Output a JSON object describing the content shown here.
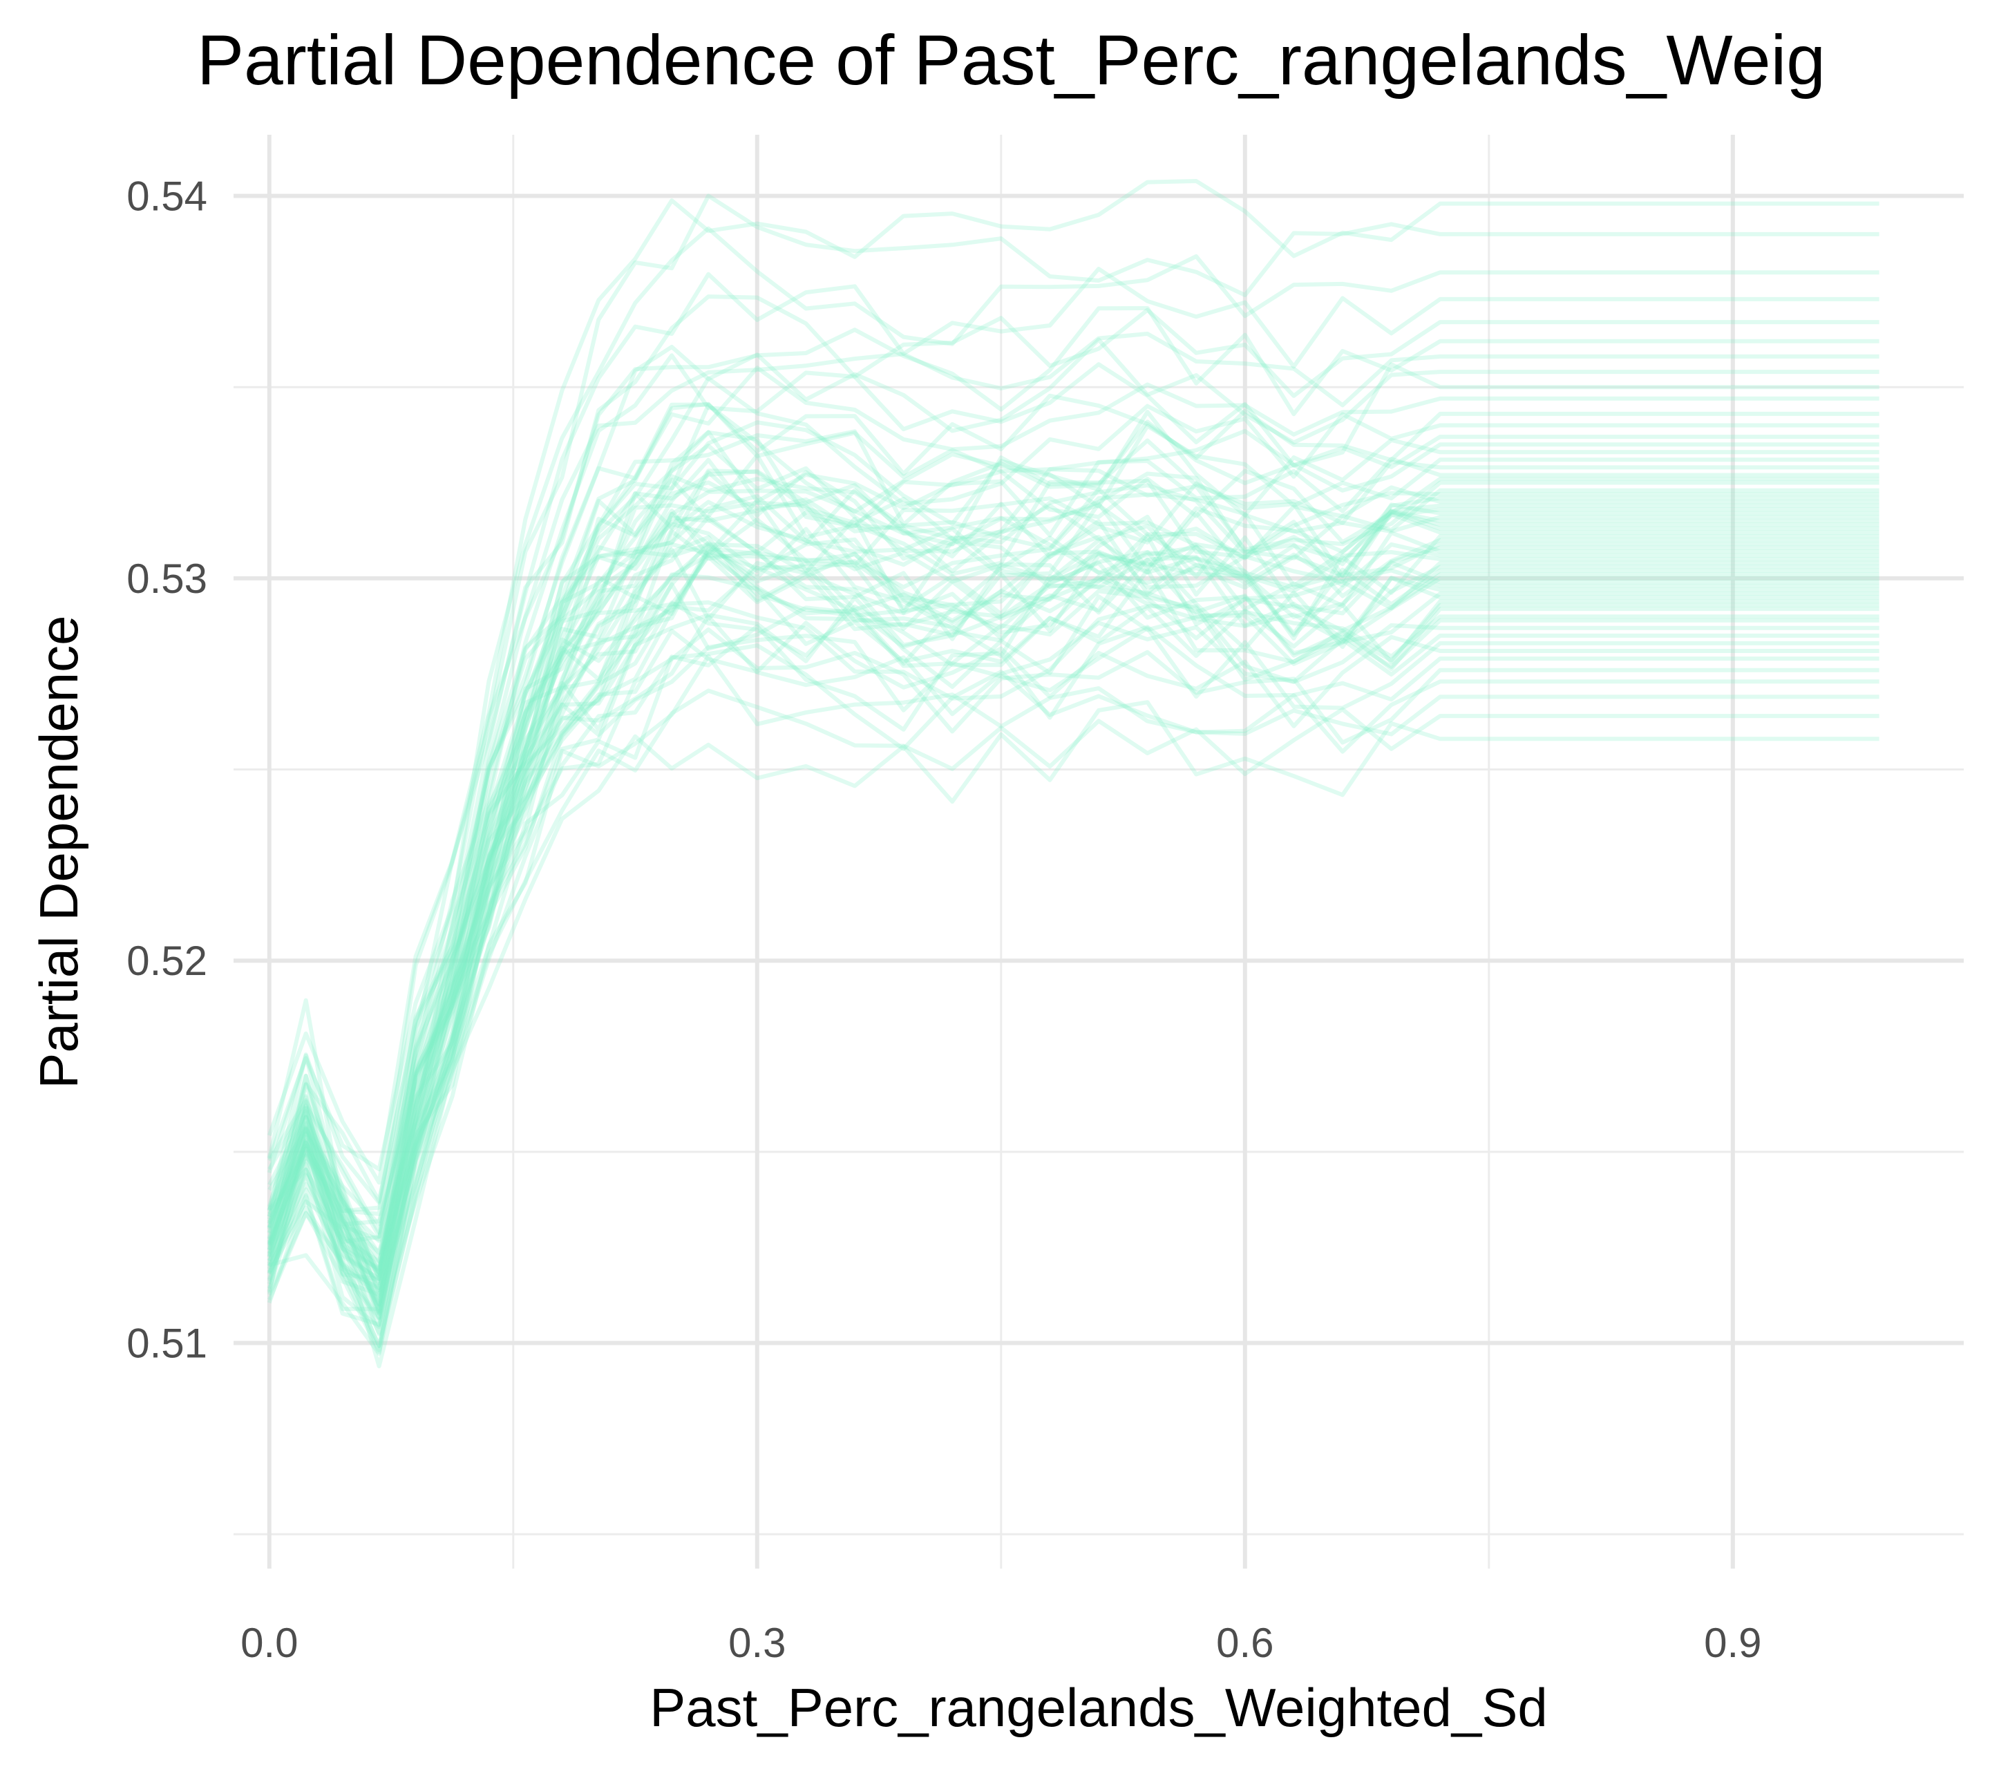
{
  "chart_data": {
    "type": "line",
    "title": "Partial Dependence of Past_Perc_rangelands_Weig",
    "xlabel": "Past_Perc_rangelands_Weighted_Sd",
    "ylabel": "Partial Dependence",
    "xlim": [
      -0.022,
      1.042
    ],
    "ylim": [
      0.5041,
      0.5416
    ],
    "x_ticks": [
      0.0,
      0.3,
      0.6,
      0.9
    ],
    "x_tick_labels": [
      "0.0",
      "0.3",
      "0.6",
      "0.9"
    ],
    "y_ticks": [
      0.51,
      0.52,
      0.53,
      0.54
    ],
    "y_tick_labels": [
      "0.51",
      "0.52",
      "0.53",
      "0.54"
    ],
    "grid": true,
    "legend": "none",
    "line_color": "#7eeec8",
    "line_opacity": 0.25,
    "x": [
      0.0,
      0.0225,
      0.045,
      0.0675,
      0.09,
      0.1125,
      0.135,
      0.1575,
      0.18,
      0.2025,
      0.225,
      0.2475,
      0.27,
      0.3,
      0.33,
      0.36,
      0.39,
      0.42,
      0.45,
      0.48,
      0.51,
      0.54,
      0.57,
      0.6,
      0.63,
      0.66,
      0.69,
      0.72,
      0.8,
      0.9,
      0.99
    ],
    "mean_curve": [
      0.5125,
      0.5153,
      0.5128,
      0.5115,
      0.516,
      0.519,
      0.5225,
      0.5255,
      0.5278,
      0.529,
      0.53,
      0.531,
      0.5312,
      0.531,
      0.5308,
      0.5305,
      0.53,
      0.53,
      0.5302,
      0.5305,
      0.5308,
      0.531,
      0.5305,
      0.5302,
      0.53,
      0.5302,
      0.5305,
      0.531,
      0.531,
      0.531,
      0.531
    ],
    "curve_offsets": [
      -0.0052,
      -0.0046,
      -0.0041,
      -0.0037,
      -0.0034,
      -0.0031,
      -0.0029,
      -0.0027,
      -0.0025,
      -0.0023,
      -0.0021,
      -0.002,
      -0.0018,
      -0.0017,
      -0.0016,
      -0.0015,
      -0.0014,
      -0.0013,
      -0.0012,
      -0.0011,
      -0.001,
      -0.0009,
      -0.0008,
      -0.0007,
      -0.0006,
      -0.0005,
      -0.0004,
      -0.0003,
      -0.0002,
      -0.0001,
      0.0,
      0.0001,
      0.0002,
      0.0003,
      0.0004,
      0.0005,
      0.0006,
      0.0007,
      0.0008,
      0.0009,
      0.001,
      0.0011,
      0.0012,
      0.0013,
      0.0015,
      0.0016,
      0.0017,
      0.0019,
      0.0021,
      0.0023,
      0.0025,
      0.0027,
      0.003,
      0.0033,
      0.0037,
      0.004,
      0.0044,
      0.0048,
      0.0052,
      0.0057,
      0.0063,
      0.007,
      0.008,
      0.0088
    ],
    "n_curves": 64
  }
}
